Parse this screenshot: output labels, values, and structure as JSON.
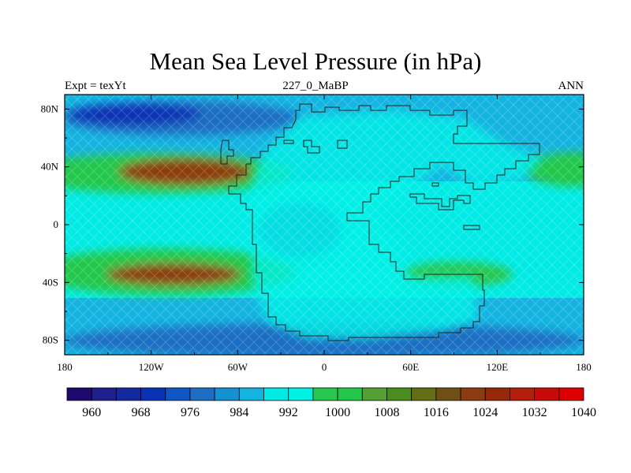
{
  "title": "Mean Sea Level Pressure (in hPa)",
  "subtitle_left": "Expt = texYt",
  "subtitle_center": "227_0_MaBP",
  "subtitle_right": "ANN",
  "chart_data": {
    "type": "heatmap",
    "projection": "cylindrical-equidistant",
    "title": "Mean Sea Level Pressure (in hPa)",
    "lon_range": [
      -180,
      180
    ],
    "lat_range": [
      -90,
      90
    ],
    "x_ticks": [
      {
        "value": -180,
        "label": "180"
      },
      {
        "value": -120,
        "label": "120W"
      },
      {
        "value": -60,
        "label": "60W"
      },
      {
        "value": 0,
        "label": "0"
      },
      {
        "value": 60,
        "label": "60E"
      },
      {
        "value": 120,
        "label": "120E"
      },
      {
        "value": 180,
        "label": "180"
      }
    ],
    "y_ticks": [
      {
        "value": 80,
        "label": "80N"
      },
      {
        "value": 40,
        "label": "40N"
      },
      {
        "value": 0,
        "label": "0"
      },
      {
        "value": -40,
        "label": "40S"
      },
      {
        "value": -80,
        "label": "80S"
      }
    ],
    "colorbar": {
      "levels": [
        960,
        964,
        968,
        972,
        976,
        980,
        984,
        988,
        992,
        996,
        1000,
        1004,
        1008,
        1012,
        1016,
        1020,
        1024,
        1028,
        1032,
        1036,
        1040
      ],
      "labels": [
        "960",
        "968",
        "976",
        "984",
        "992",
        "1000",
        "1008",
        "1016",
        "1024",
        "1032",
        "1040"
      ],
      "colors": [
        "#1e0a6e",
        "#1e1e8c",
        "#1428a0",
        "#0a32b4",
        "#0f55c3",
        "#1e6ec3",
        "#1491d2",
        "#14b4e1",
        "#00ebe6",
        "#00f0e6",
        "#28c850",
        "#23c84b",
        "#55a032",
        "#4b8c1e",
        "#646e14",
        "#6e5014",
        "#8c3c0f",
        "#96280a",
        "#b41e0a",
        "#c80a0a",
        "#dc0000"
      ]
    },
    "fields": [
      {
        "name": "north-polar-low",
        "lon": -90,
        "lat": 76,
        "value": 976
      },
      {
        "name": "north-subpolar-belt",
        "lon": 0,
        "lat": 65,
        "value": 990
      },
      {
        "name": "north-subtropical-high",
        "lon": -90,
        "lat": 38,
        "value": 1024
      },
      {
        "name": "north-high-east",
        "lon": 170,
        "lat": 38,
        "value": 1010
      },
      {
        "name": "equatorial-low",
        "lon": -20,
        "lat": -4,
        "value": 990
      },
      {
        "name": "south-subtropical-high",
        "lon": -90,
        "lat": -38,
        "value": 1024
      },
      {
        "name": "south-high-east",
        "lon": 60,
        "lat": -36,
        "value": 1008
      },
      {
        "name": "south-subpolar-belt",
        "lon": 0,
        "lat": -70,
        "value": 984
      },
      {
        "name": "pangaea-interior",
        "lon": 30,
        "lat": 20,
        "value": 998
      }
    ],
    "grid": false,
    "legend": "bottom"
  }
}
